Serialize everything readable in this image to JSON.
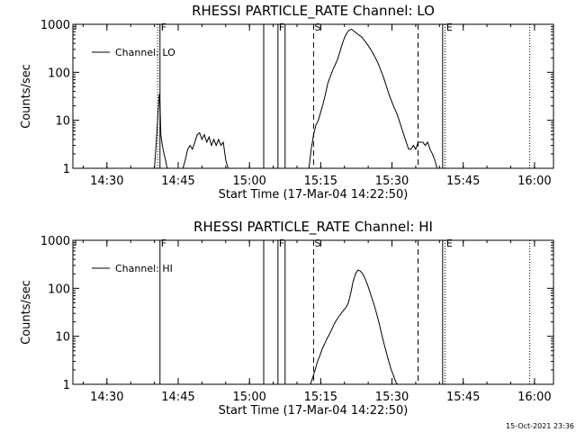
{
  "chart_data": [
    {
      "type": "line",
      "title": "RHESSI PARTICLE_RATE Channel: LO",
      "xlabel": "Start Time (17-Mar-04 14:22:50)",
      "ylabel": "Counts/sec",
      "yscale": "log",
      "ylim": [
        1,
        1000
      ],
      "xlim": [
        "14:22:50",
        "16:04:00"
      ],
      "x_ticks": [
        "14:30",
        "14:45",
        "15:00",
        "15:15",
        "15:30",
        "15:45",
        "16:00"
      ],
      "y_ticks": [
        "1",
        "10",
        "100",
        "1000"
      ],
      "legend": "Channel: LO",
      "legend_position": "top-left",
      "series": [
        {
          "name": "Channel: LO",
          "x": [
            "14:40:00",
            "14:40:20",
            "14:40:40",
            "14:41:00",
            "14:41:10",
            "14:41:20",
            "14:41:40",
            "14:42:00",
            "14:42:20",
            "14:42:40",
            "14:46:00",
            "14:46:30",
            "14:47:00",
            "14:47:30",
            "14:48:00",
            "14:48:30",
            "14:49:00",
            "14:49:30",
            "14:50:00",
            "14:50:30",
            "14:51:00",
            "14:51:30",
            "14:52:00",
            "14:52:30",
            "14:53:00",
            "14:53:30",
            "14:54:00",
            "14:54:30",
            "14:55:00",
            "14:55:30",
            "15:12:30",
            "15:13:00",
            "15:13:30",
            "15:14:00",
            "15:14:30",
            "15:15:00",
            "15:15:30",
            "15:16:00",
            "15:16:30",
            "15:17:00",
            "15:17:30",
            "15:18:00",
            "15:18:30",
            "15:19:00",
            "15:19:30",
            "15:20:00",
            "15:20:30",
            "15:21:00",
            "15:21:30",
            "15:22:00",
            "15:22:30",
            "15:23:00",
            "15:23:30",
            "15:24:00",
            "15:24:30",
            "15:25:00",
            "15:25:30",
            "15:26:00",
            "15:26:30",
            "15:27:00",
            "15:27:30",
            "15:28:00",
            "15:28:30",
            "15:29:00",
            "15:29:30",
            "15:30:00",
            "15:30:30",
            "15:31:00",
            "15:31:30",
            "15:32:00",
            "15:32:30",
            "15:33:00",
            "15:33:30",
            "15:34:00",
            "15:34:30",
            "15:35:00",
            "15:35:30",
            "15:36:00",
            "15:36:30",
            "15:37:00",
            "15:37:30",
            "15:38:00",
            "15:38:30",
            "15:39:00",
            "15:39:30"
          ],
          "y": [
            1,
            3,
            10,
            35,
            22,
            5,
            3,
            2,
            1.5,
            1,
            1,
            1.5,
            2.5,
            3,
            2.5,
            3.5,
            5,
            5.5,
            4,
            5,
            3.5,
            4.5,
            3,
            4,
            3,
            4,
            3,
            3.5,
            1.5,
            1,
            1,
            2.5,
            5,
            8,
            10,
            15,
            22,
            35,
            60,
            80,
            110,
            140,
            180,
            260,
            380,
            520,
            660,
            760,
            790,
            720,
            660,
            600,
            560,
            490,
            420,
            360,
            300,
            250,
            200,
            160,
            120,
            90,
            65,
            45,
            32,
            24,
            18,
            14,
            10,
            7,
            5,
            3.5,
            2.5,
            2.5,
            3,
            2.5,
            3.5,
            3.5,
            3.5,
            3,
            3.5,
            2.5,
            2,
            1.5,
            1
          ]
        }
      ],
      "vlines_solid": [
        "14:41:10",
        "15:03:00",
        "15:06:00",
        "15:07:30",
        "15:40:40"
      ],
      "vlines_dashed": [
        "15:13:30",
        "15:35:30"
      ],
      "vlines_dotted": [
        "14:40:40",
        "15:41:10",
        "15:59:00"
      ],
      "markers": [
        "F",
        "F",
        "S",
        "E"
      ]
    },
    {
      "type": "line",
      "title": "RHESSI PARTICLE_RATE Channel: HI",
      "xlabel": "Start Time (17-Mar-04 14:22:50)",
      "ylabel": "Counts/sec",
      "yscale": "log",
      "ylim": [
        1,
        1000
      ],
      "xlim": [
        "14:22:50",
        "16:04:00"
      ],
      "x_ticks": [
        "14:30",
        "14:45",
        "15:00",
        "15:15",
        "15:30",
        "15:45",
        "16:00"
      ],
      "y_ticks": [
        "1",
        "10",
        "100",
        "1000"
      ],
      "legend": "Channel: HI",
      "legend_position": "top-left",
      "series": [
        {
          "name": "Channel: HI",
          "x": [
            "15:12:50",
            "15:13:20",
            "15:13:50",
            "15:14:20",
            "15:14:50",
            "15:15:20",
            "15:15:50",
            "15:16:20",
            "15:16:50",
            "15:17:20",
            "15:17:50",
            "15:18:20",
            "15:18:50",
            "15:19:20",
            "15:19:50",
            "15:20:20",
            "15:20:50",
            "15:21:20",
            "15:21:50",
            "15:22:20",
            "15:22:50",
            "15:23:20",
            "15:23:50",
            "15:24:20",
            "15:24:50",
            "15:25:20",
            "15:25:50",
            "15:26:20",
            "15:26:50",
            "15:27:20",
            "15:27:50",
            "15:28:20",
            "15:28:50",
            "15:29:20",
            "15:29:50",
            "15:30:20",
            "15:30:50",
            "15:31:10"
          ],
          "y": [
            1,
            1.4,
            2,
            3,
            4,
            5.5,
            7,
            9,
            11,
            14,
            18,
            22,
            26,
            30,
            35,
            40,
            50,
            80,
            140,
            200,
            240,
            230,
            200,
            160,
            120,
            85,
            60,
            42,
            28,
            18,
            11,
            7,
            4.5,
            3,
            2,
            1.5,
            1.1,
            1
          ]
        }
      ],
      "vlines_solid": [
        "14:41:10",
        "15:03:00",
        "15:06:00",
        "15:07:30",
        "15:40:40"
      ],
      "vlines_dashed": [
        "15:13:30",
        "15:35:30"
      ],
      "vlines_dotted": [
        "15:41:10",
        "15:59:00"
      ],
      "markers": [
        "F",
        "F",
        "S",
        "E"
      ]
    }
  ],
  "footer": {
    "timestamp": "15-Oct-2021 23:36"
  },
  "colors": {
    "background": "#ffffff",
    "ink": "#000000"
  }
}
